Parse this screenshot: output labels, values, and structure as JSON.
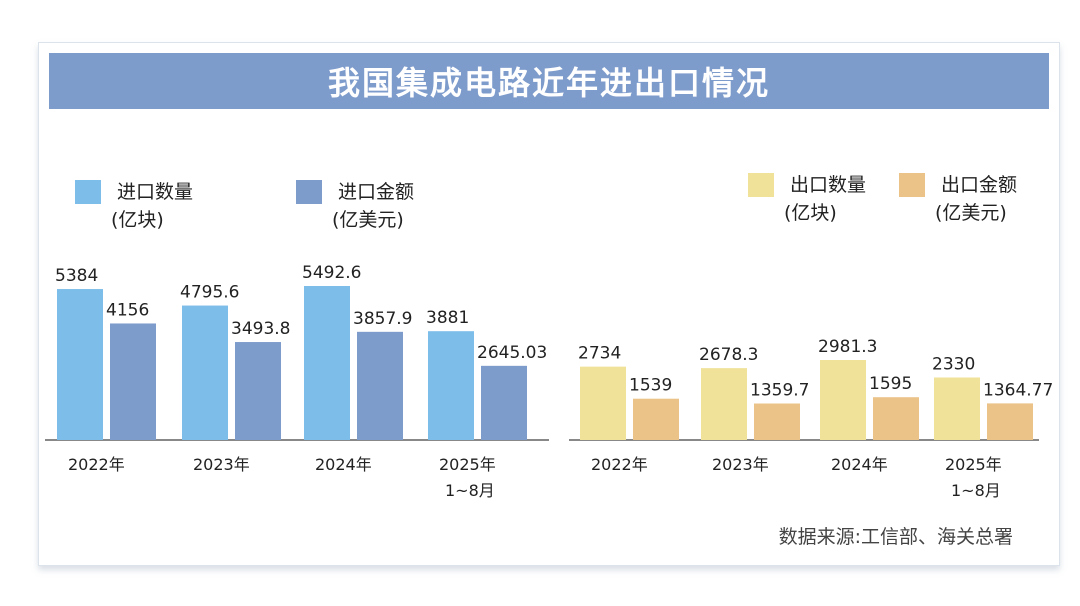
{
  "title": "我国集成电路近年进出口情况",
  "source": "数据来源:工信部、海关总署",
  "colors": {
    "title_bg": "#7d9bcb",
    "import_qty": "#7dbdea",
    "import_amt": "#7d9bcb",
    "export_qty": "#f1e29a",
    "export_amt": "#ebc389",
    "axis": "#888888"
  },
  "chart_data": [
    {
      "type": "bar",
      "title": "进口",
      "categories": [
        "2022年",
        "2023年",
        "2024年",
        "2025年\n1~8月"
      ],
      "category_lines": [
        [
          "2022年"
        ],
        [
          "2023年"
        ],
        [
          "2024年"
        ],
        [
          "2025年",
          "1~8月"
        ]
      ],
      "legend_position": "top-left",
      "grid": false,
      "series": [
        {
          "name": "进口数量",
          "unit": "(亿块)",
          "color": "#7dbdea",
          "values": [
            5384,
            4795.6,
            5492.6,
            3881
          ],
          "labels": [
            "5384",
            "4795.6",
            "5492.6",
            "3881"
          ]
        },
        {
          "name": "进口金额",
          "unit": "(亿美元)",
          "color": "#7d9bcb",
          "values": [
            4156,
            3493.8,
            3857.9,
            2645.03
          ],
          "labels": [
            "4156",
            "3493.8",
            "3857.9",
            "2645.03"
          ]
        }
      ],
      "ylim": [
        0,
        5800
      ]
    },
    {
      "type": "bar",
      "title": "出口",
      "categories": [
        "2022年",
        "2023年",
        "2024年",
        "2025年\n1~8月"
      ],
      "category_lines": [
        [
          "2022年"
        ],
        [
          "2023年"
        ],
        [
          "2024年"
        ],
        [
          "2025年",
          "1~8月"
        ]
      ],
      "legend_position": "top-right",
      "grid": false,
      "series": [
        {
          "name": "出口数量",
          "unit": "(亿块)",
          "color": "#f1e29a",
          "values": [
            2734,
            2678.3,
            2981.3,
            2330
          ],
          "labels": [
            "2734",
            "2678.3",
            "2981.3",
            "2330"
          ]
        },
        {
          "name": "出口金额",
          "unit": "(亿美元)",
          "color": "#ebc389",
          "values": [
            1539,
            1359.7,
            1595,
            1364.77
          ],
          "labels": [
            "1539",
            "1359.7",
            "1595",
            "1364.77"
          ]
        }
      ],
      "ylim": [
        0,
        3200
      ]
    }
  ]
}
